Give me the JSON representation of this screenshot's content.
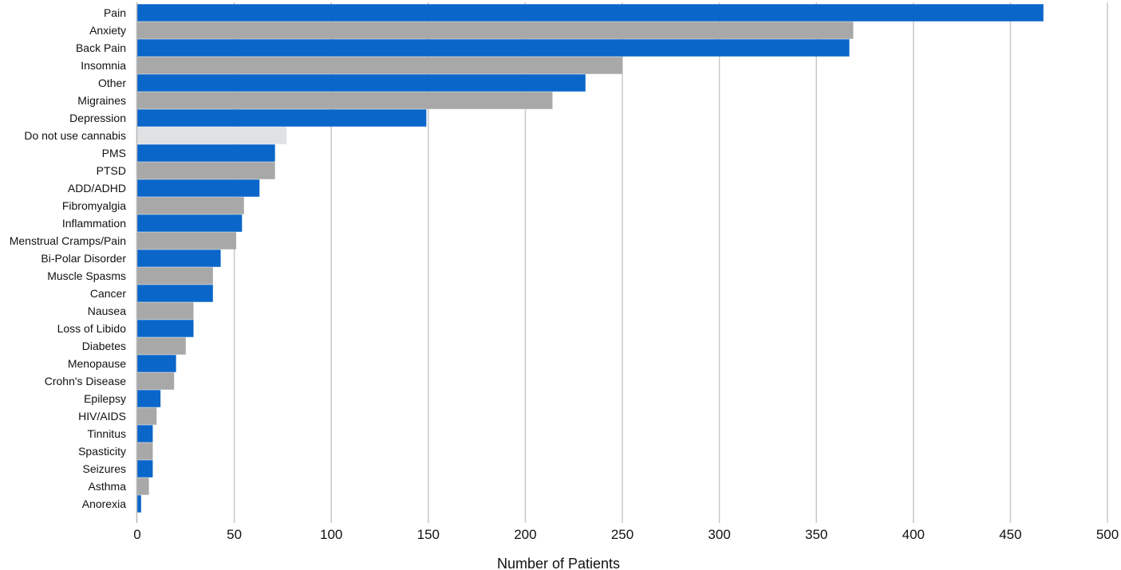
{
  "chart_data": {
    "type": "bar",
    "orientation": "horizontal",
    "title": "",
    "xlabel": "Number of Patients",
    "ylabel": "",
    "xlim": [
      0,
      500
    ],
    "x_ticks": [
      0,
      50,
      100,
      150,
      200,
      250,
      300,
      350,
      400,
      450,
      500
    ],
    "grid": "vertical",
    "categories": [
      "Pain",
      "Anxiety",
      "Back Pain",
      "Insomnia",
      "Other",
      "Migraines",
      "Depression",
      "Do not use cannabis",
      "PMS",
      "PTSD",
      "ADD/ADHD",
      "Fibromyalgia",
      "Inflammation",
      "Menstrual Cramps/Pain",
      "Bi-Polar Disorder",
      "Muscle Spasms",
      "Cancer",
      "Nausea",
      "Loss of Libido",
      "Diabetes",
      "Menopause",
      "Crohn's Disease",
      "Epilepsy",
      "HIV/AIDS",
      "Tinnitus",
      "Spasticity",
      "Seizures",
      "Asthma",
      "Anorexia"
    ],
    "values": [
      467,
      369,
      367,
      250,
      231,
      214,
      149,
      77,
      71,
      71,
      63,
      55,
      54,
      51,
      43,
      39,
      39,
      29,
      29,
      25,
      20,
      19,
      12,
      10,
      8,
      8,
      8,
      6,
      2
    ],
    "bar_colors": [
      "#0a66c9",
      "#a8a8a8",
      "#0a66c9",
      "#a8a8a8",
      "#0a66c9",
      "#a8a8a8",
      "#0a66c9",
      "#dfe1e3",
      "#0a66c9",
      "#a8a8a8",
      "#0a66c9",
      "#a8a8a8",
      "#0a66c9",
      "#a8a8a8",
      "#0a66c9",
      "#a8a8a8",
      "#0a66c9",
      "#a8a8a8",
      "#0a66c9",
      "#a8a8a8",
      "#0a66c9",
      "#a8a8a8",
      "#0a66c9",
      "#a8a8a8",
      "#0a66c9",
      "#a8a8a8",
      "#0a66c9",
      "#a8a8a8",
      "#0a66c9"
    ],
    "gridline_color": "#c8c8c8"
  }
}
